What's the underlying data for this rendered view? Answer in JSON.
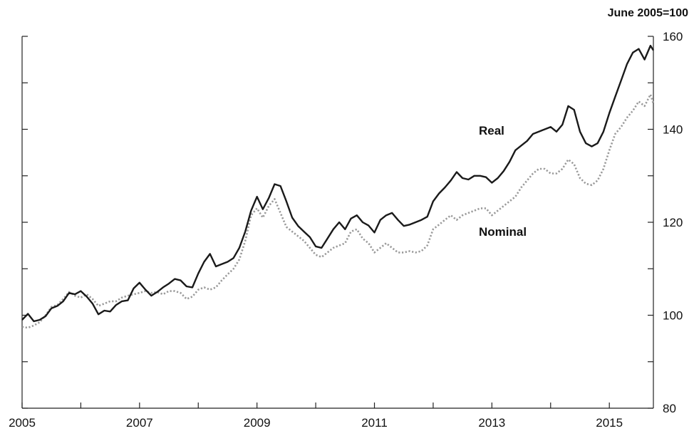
{
  "chart_data": {
    "type": "line",
    "unit_label": "June 2005=100",
    "xlim": [
      2005.0,
      2015.75
    ],
    "ylim": [
      80,
      160
    ],
    "x_ticks": [
      2005,
      2007,
      2009,
      2011,
      2013,
      2015
    ],
    "x_tick_labels": [
      "2005",
      "2007",
      "2009",
      "2011",
      "2013",
      "2015"
    ],
    "y_ticks": [
      80,
      100,
      120,
      140,
      160
    ],
    "y_tick_labels": [
      "80",
      "100",
      "120",
      "140",
      "160"
    ],
    "y_minor_ticks": [
      90,
      110,
      130,
      150
    ],
    "x_minor_ticks": [
      2006,
      2008,
      2010,
      2012,
      2014
    ],
    "grid": false,
    "legend": "none",
    "series": [
      {
        "name": "Real",
        "style": "solid",
        "color": "#1a1a1a",
        "x": [
          2005.0,
          2005.1,
          2005.2,
          2005.3,
          2005.4,
          2005.5,
          2005.6,
          2005.7,
          2005.8,
          2005.9,
          2006.0,
          2006.1,
          2006.2,
          2006.3,
          2006.4,
          2006.5,
          2006.6,
          2006.7,
          2006.8,
          2006.9,
          2007.0,
          2007.1,
          2007.2,
          2007.3,
          2007.4,
          2007.5,
          2007.6,
          2007.7,
          2007.8,
          2007.9,
          2008.0,
          2008.1,
          2008.2,
          2008.3,
          2008.4,
          2008.5,
          2008.6,
          2008.7,
          2008.8,
          2008.9,
          2009.0,
          2009.1,
          2009.2,
          2009.3,
          2009.4,
          2009.5,
          2009.6,
          2009.7,
          2009.8,
          2009.9,
          2010.0,
          2010.1,
          2010.2,
          2010.3,
          2010.4,
          2010.5,
          2010.6,
          2010.7,
          2010.8,
          2010.9,
          2011.0,
          2011.1,
          2011.2,
          2011.3,
          2011.4,
          2011.5,
          2011.6,
          2011.7,
          2011.8,
          2011.9,
          2012.0,
          2012.1,
          2012.2,
          2012.3,
          2012.4,
          2012.5,
          2012.6,
          2012.7,
          2012.8,
          2012.9,
          2013.0,
          2013.1,
          2013.2,
          2013.3,
          2013.4,
          2013.5,
          2013.6,
          2013.7,
          2013.8,
          2013.9,
          2014.0,
          2014.1,
          2014.2,
          2014.3,
          2014.4,
          2014.5,
          2014.6,
          2014.7,
          2014.8,
          2014.9,
          2015.0,
          2015.1,
          2015.2,
          2015.3,
          2015.4,
          2015.5,
          2015.6,
          2015.7,
          2015.75
        ],
        "values": [
          99.0,
          100.3,
          98.7,
          99.0,
          99.8,
          101.5,
          102.0,
          103.0,
          104.8,
          104.5,
          105.2,
          104.0,
          102.5,
          100.2,
          101.0,
          100.8,
          102.2,
          103.0,
          103.2,
          105.8,
          107.0,
          105.5,
          104.2,
          105.0,
          106.0,
          106.8,
          107.8,
          107.5,
          106.2,
          106.0,
          109.0,
          111.5,
          113.2,
          110.5,
          111.0,
          111.5,
          112.3,
          114.5,
          118.0,
          122.5,
          125.5,
          122.8,
          125.2,
          128.2,
          127.8,
          124.5,
          121.0,
          119.2,
          118.0,
          116.8,
          114.8,
          114.5,
          116.5,
          118.5,
          120.0,
          118.5,
          120.8,
          121.5,
          120.0,
          119.3,
          117.8,
          120.5,
          121.5,
          122.0,
          120.5,
          119.2,
          119.5,
          120.0,
          120.5,
          121.2,
          124.5,
          126.2,
          127.5,
          129.0,
          130.8,
          129.5,
          129.2,
          130.0,
          130.0,
          129.7,
          128.5,
          129.5,
          131.0,
          133.0,
          135.5,
          136.5,
          137.5,
          139.0,
          139.5,
          140.0,
          140.5,
          139.5,
          141.0,
          145.0,
          144.2,
          139.5,
          137.0,
          136.3,
          137.0,
          139.5,
          143.5,
          147.0,
          150.5,
          154.0,
          156.5,
          157.3,
          155.0,
          158.0,
          157.0
        ],
        "label": "Real"
      },
      {
        "name": "Nominal",
        "style": "dotted",
        "color": "#9a9a9a",
        "x": [
          2005.0,
          2005.1,
          2005.2,
          2005.3,
          2005.4,
          2005.5,
          2005.6,
          2005.7,
          2005.8,
          2005.9,
          2006.0,
          2006.1,
          2006.2,
          2006.3,
          2006.4,
          2006.5,
          2006.6,
          2006.7,
          2006.8,
          2006.9,
          2007.0,
          2007.1,
          2007.2,
          2007.3,
          2007.4,
          2007.5,
          2007.6,
          2007.7,
          2007.8,
          2007.9,
          2008.0,
          2008.1,
          2008.2,
          2008.3,
          2008.4,
          2008.5,
          2008.6,
          2008.7,
          2008.8,
          2008.9,
          2009.0,
          2009.1,
          2009.2,
          2009.3,
          2009.4,
          2009.5,
          2009.6,
          2009.7,
          2009.8,
          2009.9,
          2010.0,
          2010.1,
          2010.2,
          2010.3,
          2010.4,
          2010.5,
          2010.6,
          2010.7,
          2010.8,
          2010.9,
          2011.0,
          2011.1,
          2011.2,
          2011.3,
          2011.4,
          2011.5,
          2011.6,
          2011.7,
          2011.8,
          2011.9,
          2012.0,
          2012.1,
          2012.2,
          2012.3,
          2012.4,
          2012.5,
          2012.6,
          2012.7,
          2012.8,
          2012.9,
          2013.0,
          2013.1,
          2013.2,
          2013.3,
          2013.4,
          2013.5,
          2013.6,
          2013.7,
          2013.8,
          2013.9,
          2014.0,
          2014.1,
          2014.2,
          2014.3,
          2014.4,
          2014.5,
          2014.6,
          2014.7,
          2014.8,
          2014.9,
          2015.0,
          2015.1,
          2015.2,
          2015.3,
          2015.4,
          2015.5,
          2015.6,
          2015.7,
          2015.75
        ],
        "values": [
          97.5,
          97.3,
          97.8,
          98.5,
          100.0,
          101.8,
          102.2,
          103.5,
          105.0,
          104.2,
          103.8,
          104.5,
          103.5,
          102.0,
          102.5,
          103.0,
          103.0,
          103.8,
          104.2,
          104.5,
          104.8,
          105.2,
          104.8,
          105.0,
          104.5,
          105.2,
          105.2,
          104.8,
          103.5,
          104.0,
          105.5,
          106.0,
          105.5,
          106.0,
          107.5,
          108.8,
          110.0,
          112.0,
          116.0,
          121.5,
          123.0,
          121.0,
          123.5,
          125.0,
          122.0,
          119.0,
          118.0,
          117.0,
          116.0,
          114.5,
          113.0,
          112.5,
          113.5,
          114.5,
          115.0,
          115.5,
          118.0,
          118.5,
          116.5,
          115.5,
          113.5,
          114.5,
          115.5,
          114.5,
          113.5,
          113.5,
          113.8,
          113.5,
          113.8,
          115.0,
          118.5,
          119.5,
          120.5,
          121.5,
          120.5,
          121.5,
          122.0,
          122.5,
          123.0,
          123.0,
          121.5,
          122.5,
          123.5,
          124.5,
          125.5,
          127.5,
          129.0,
          130.5,
          131.5,
          131.5,
          130.5,
          130.5,
          131.5,
          133.5,
          132.5,
          129.5,
          128.3,
          128.0,
          129.0,
          131.5,
          135.5,
          139.0,
          140.5,
          142.5,
          144.0,
          146.0,
          145.0,
          147.5,
          145.5
        ],
        "label": "Nominal"
      }
    ]
  }
}
